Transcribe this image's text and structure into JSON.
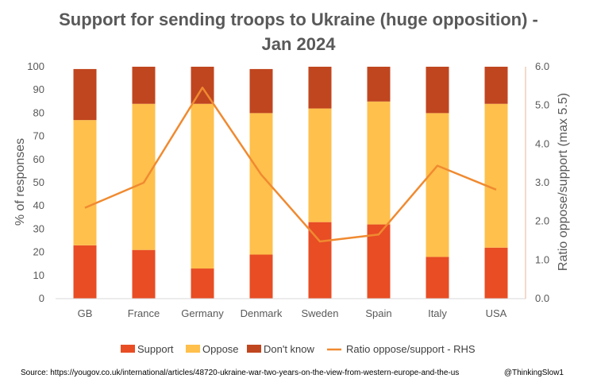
{
  "chart_data": {
    "type": "bar",
    "subtype": "stacked-bar-with-line",
    "title_line1": "Support for sending troops to Ukraine (huge opposition) -",
    "title_line2": "Jan 2024",
    "categories": [
      "GB",
      "France",
      "Germany",
      "Denmark",
      "Sweden",
      "Spain",
      "Italy",
      "USA"
    ],
    "series": [
      {
        "name": "Support",
        "axis": "left",
        "color": "#E84D24",
        "values": [
          23,
          21,
          13,
          19,
          33,
          32,
          18,
          22
        ]
      },
      {
        "name": "Oppose",
        "axis": "left",
        "color": "#FFC04C",
        "values": [
          54,
          63,
          71,
          61,
          49,
          53,
          62,
          62
        ]
      },
      {
        "name": "Don't know",
        "axis": "left",
        "color": "#C0461F",
        "values": [
          22,
          16,
          16,
          19,
          18,
          15,
          20,
          16
        ]
      }
    ],
    "line_series": {
      "name": "Ratio oppose/support - RHS",
      "axis": "right",
      "color": "#F08A30",
      "values": [
        2.35,
        3.0,
        5.46,
        3.21,
        1.48,
        1.66,
        3.44,
        2.82
      ]
    },
    "ylabel": "% of responses",
    "y2label": "Ratio oppose/support (max 5.5)",
    "ylim": [
      0,
      100
    ],
    "y2lim": [
      0,
      6
    ],
    "yticks": [
      "0",
      "10",
      "20",
      "30",
      "40",
      "50",
      "60",
      "70",
      "80",
      "90",
      "100"
    ],
    "y2ticks": [
      "0.0",
      "1.0",
      "2.0",
      "3.0",
      "4.0",
      "5.0",
      "6.0"
    ],
    "grid": false,
    "legend_position": "bottom"
  },
  "footer": {
    "source": "Source: https://yougov.co.uk/international/articles/48720-ukraine-war-two-years-on-the-view-from-western-europe-and-the-us",
    "handle": "@ThinkingSlow1"
  }
}
